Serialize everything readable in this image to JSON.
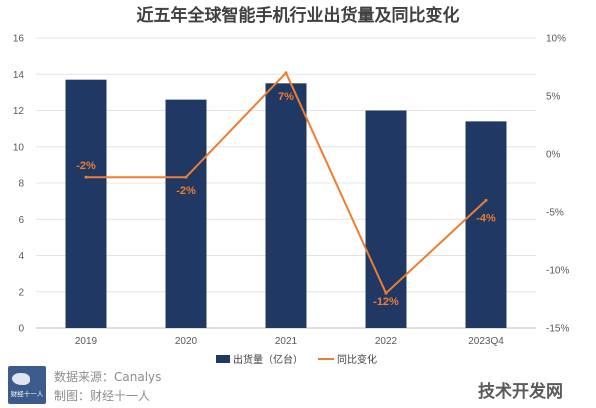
{
  "chart_data": {
    "type": "bar",
    "title": "近五年全球智能手机行业出货量及同比变化",
    "categories": [
      "2019",
      "2020",
      "2021",
      "2022",
      "2023Q4"
    ],
    "series": [
      {
        "name": "出货量（亿台）",
        "type": "bar",
        "axis": "left",
        "color": "#203864",
        "values": [
          13.7,
          12.6,
          13.5,
          12.0,
          11.4
        ]
      },
      {
        "name": "同比变化",
        "type": "line",
        "axis": "right",
        "color": "#ed7d31",
        "values": [
          -2,
          -2,
          7,
          -12,
          -4
        ],
        "labels": [
          "-2%",
          "-2%",
          "7%",
          "-12%",
          "-4%"
        ]
      }
    ],
    "y_left": {
      "min": 0,
      "max": 16,
      "ticks": [
        "0",
        "2",
        "4",
        "6",
        "8",
        "10",
        "12",
        "14",
        "16"
      ]
    },
    "y_right": {
      "min": -15,
      "max": 10,
      "ticks": [
        "-15%",
        "-10%",
        "-5%",
        "0%",
        "5%",
        "10%"
      ]
    },
    "grid": true,
    "legend_position": "bottom"
  },
  "footer": {
    "source": "数据来源：Canalys",
    "maker": "制图：财经十一人",
    "logo_text": "财经十一人"
  },
  "watermark": "技术开发网"
}
